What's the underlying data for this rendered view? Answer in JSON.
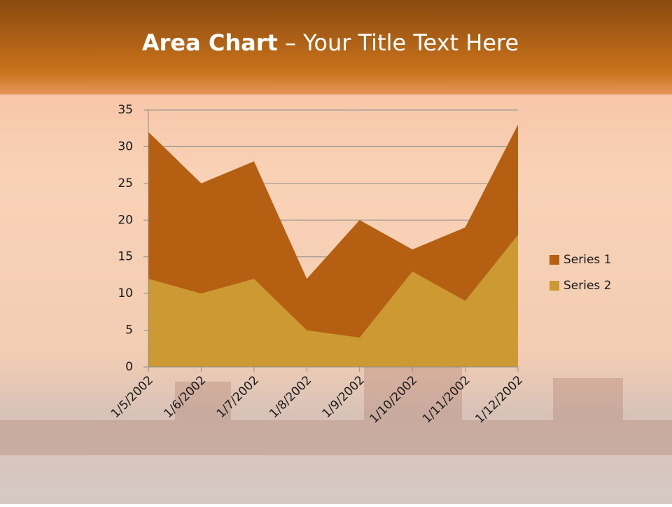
{
  "slide": {
    "title_bold": "Area Chart",
    "title_rest": "– Your Title Text Here"
  },
  "chart_data": {
    "type": "area",
    "x": [
      "1/5/2002",
      "1/6/2002",
      "1/7/2002",
      "1/8/2002",
      "1/9/2002",
      "1/10/2002",
      "1/11/2002",
      "1/12/2002"
    ],
    "series": [
      {
        "name": "Series 1",
        "color": "#b45f12",
        "values": [
          32,
          25,
          28,
          12,
          20,
          16,
          19,
          33
        ]
      },
      {
        "name": "Series 2",
        "color": "#cc9933",
        "values": [
          12,
          10,
          12,
          5,
          4,
          13,
          9,
          18
        ]
      }
    ],
    "ylim": [
      0,
      35
    ],
    "yticks": [
      0,
      5,
      10,
      15,
      20,
      25,
      30,
      35
    ],
    "grid": true,
    "legend": "right"
  }
}
